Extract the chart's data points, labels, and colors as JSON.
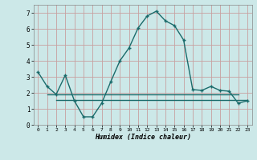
{
  "xlabel": "Humidex (Indice chaleur)",
  "xlim": [
    -0.5,
    23.5
  ],
  "ylim": [
    0,
    7.5
  ],
  "yticks": [
    0,
    1,
    2,
    3,
    4,
    5,
    6,
    7
  ],
  "xticks": [
    0,
    1,
    2,
    3,
    4,
    5,
    6,
    7,
    8,
    9,
    10,
    11,
    12,
    13,
    14,
    15,
    16,
    17,
    18,
    19,
    20,
    21,
    22,
    23
  ],
  "xtick_labels": [
    "0",
    "1",
    "2",
    "3",
    "4",
    "5",
    "6",
    "7",
    "8",
    "9",
    "10",
    "11",
    "12",
    "13",
    "14",
    "15",
    "16",
    "17",
    "18",
    "19",
    "20",
    "21",
    "22",
    "23"
  ],
  "bg_color": "#cce8e8",
  "grid_color": "#c8a0a0",
  "line_color": "#1a6b6b",
  "line1_x": [
    0,
    1,
    2,
    3,
    4,
    5,
    6,
    7,
    8,
    9,
    10,
    11,
    12,
    13,
    14,
    15,
    16,
    17,
    18,
    19,
    20,
    21,
    22,
    23
  ],
  "line1_y": [
    3.3,
    2.4,
    1.9,
    3.1,
    1.5,
    0.5,
    0.5,
    1.35,
    2.7,
    4.0,
    4.8,
    6.05,
    6.8,
    7.1,
    6.5,
    6.2,
    5.3,
    2.2,
    2.15,
    2.4,
    2.15,
    2.1,
    1.35,
    1.5
  ],
  "line2_x": [
    1,
    22
  ],
  "line2_y": [
    1.9,
    1.9
  ],
  "line3_x": [
    2,
    23
  ],
  "line3_y": [
    1.55,
    1.55
  ]
}
